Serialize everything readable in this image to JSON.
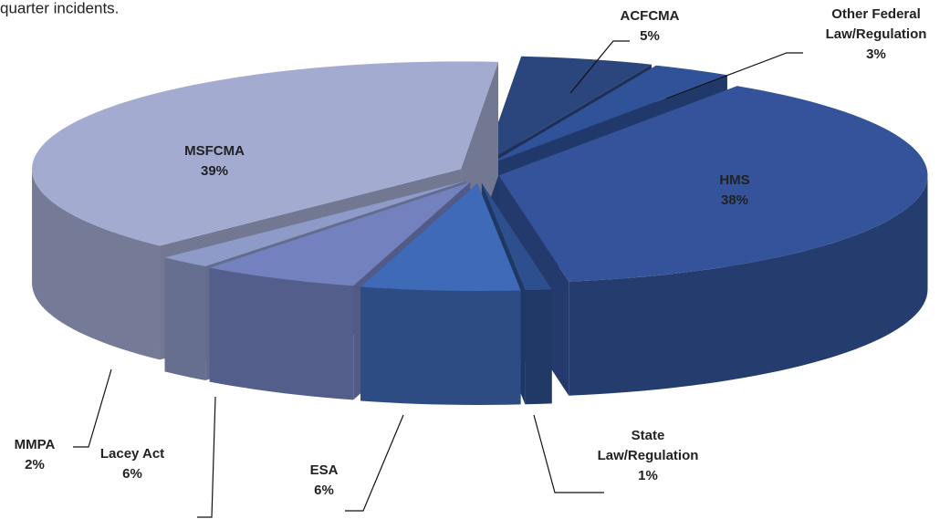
{
  "caption": "quarter incidents.",
  "chart_data": {
    "type": "pie3d",
    "categories": [
      "ACFCMA",
      "Other Federal Law/Regulation",
      "HMS",
      "State Law/Regulation",
      "ESA",
      "Lacey Act",
      "MMPA",
      "MSFCMA"
    ],
    "values": [
      5,
      3,
      38,
      1,
      6,
      6,
      2,
      39
    ],
    "value_labels": [
      "5%",
      "3%",
      "38%",
      "1%",
      "6%",
      "6%",
      "2%",
      "39%"
    ],
    "colors": [
      "#2b457d",
      "#2f5298",
      "#34539a",
      "#2d4f8e",
      "#3f6ab8",
      "#7382bf",
      "#8e9ac8",
      "#a3abd0"
    ]
  }
}
